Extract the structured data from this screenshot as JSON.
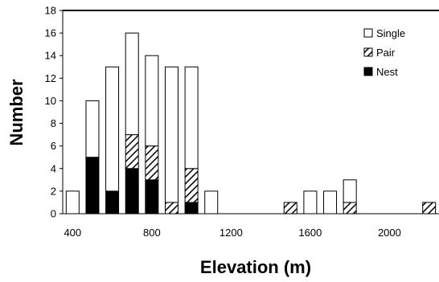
{
  "chart_data": {
    "type": "bar",
    "stacked": true,
    "xlabel": "Elevation (m)",
    "ylabel": "Number",
    "ylim": [
      0,
      18
    ],
    "yticks": [
      "0",
      "2",
      "4",
      "6",
      "8",
      "10",
      "12",
      "14",
      "16",
      "18"
    ],
    "xlim": [
      350,
      2250
    ],
    "xticks": [
      "400",
      "800",
      "1200",
      "1600",
      "2000"
    ],
    "categories": [
      400,
      500,
      600,
      700,
      800,
      900,
      1000,
      1100,
      1500,
      1600,
      1700,
      1800,
      2200
    ],
    "series": [
      {
        "name": "Nest",
        "fill": "solid",
        "values": [
          0,
          5,
          2,
          4,
          3,
          0,
          1,
          0,
          0,
          0,
          0,
          0,
          0
        ]
      },
      {
        "name": "Pair",
        "fill": "hatched",
        "values": [
          0,
          0,
          0,
          3,
          3,
          1,
          3,
          0,
          1,
          0,
          0,
          1,
          1
        ]
      },
      {
        "name": "Single",
        "fill": "open",
        "values": [
          2,
          5,
          11,
          9,
          8,
          12,
          9,
          2,
          0,
          2,
          2,
          2,
          0
        ]
      }
    ],
    "legend": {
      "position": "top-right",
      "order": [
        "Single",
        "Pair",
        "Nest"
      ]
    },
    "grid": false
  },
  "colors": {
    "ink": "#000000",
    "background": "#ffffff"
  }
}
